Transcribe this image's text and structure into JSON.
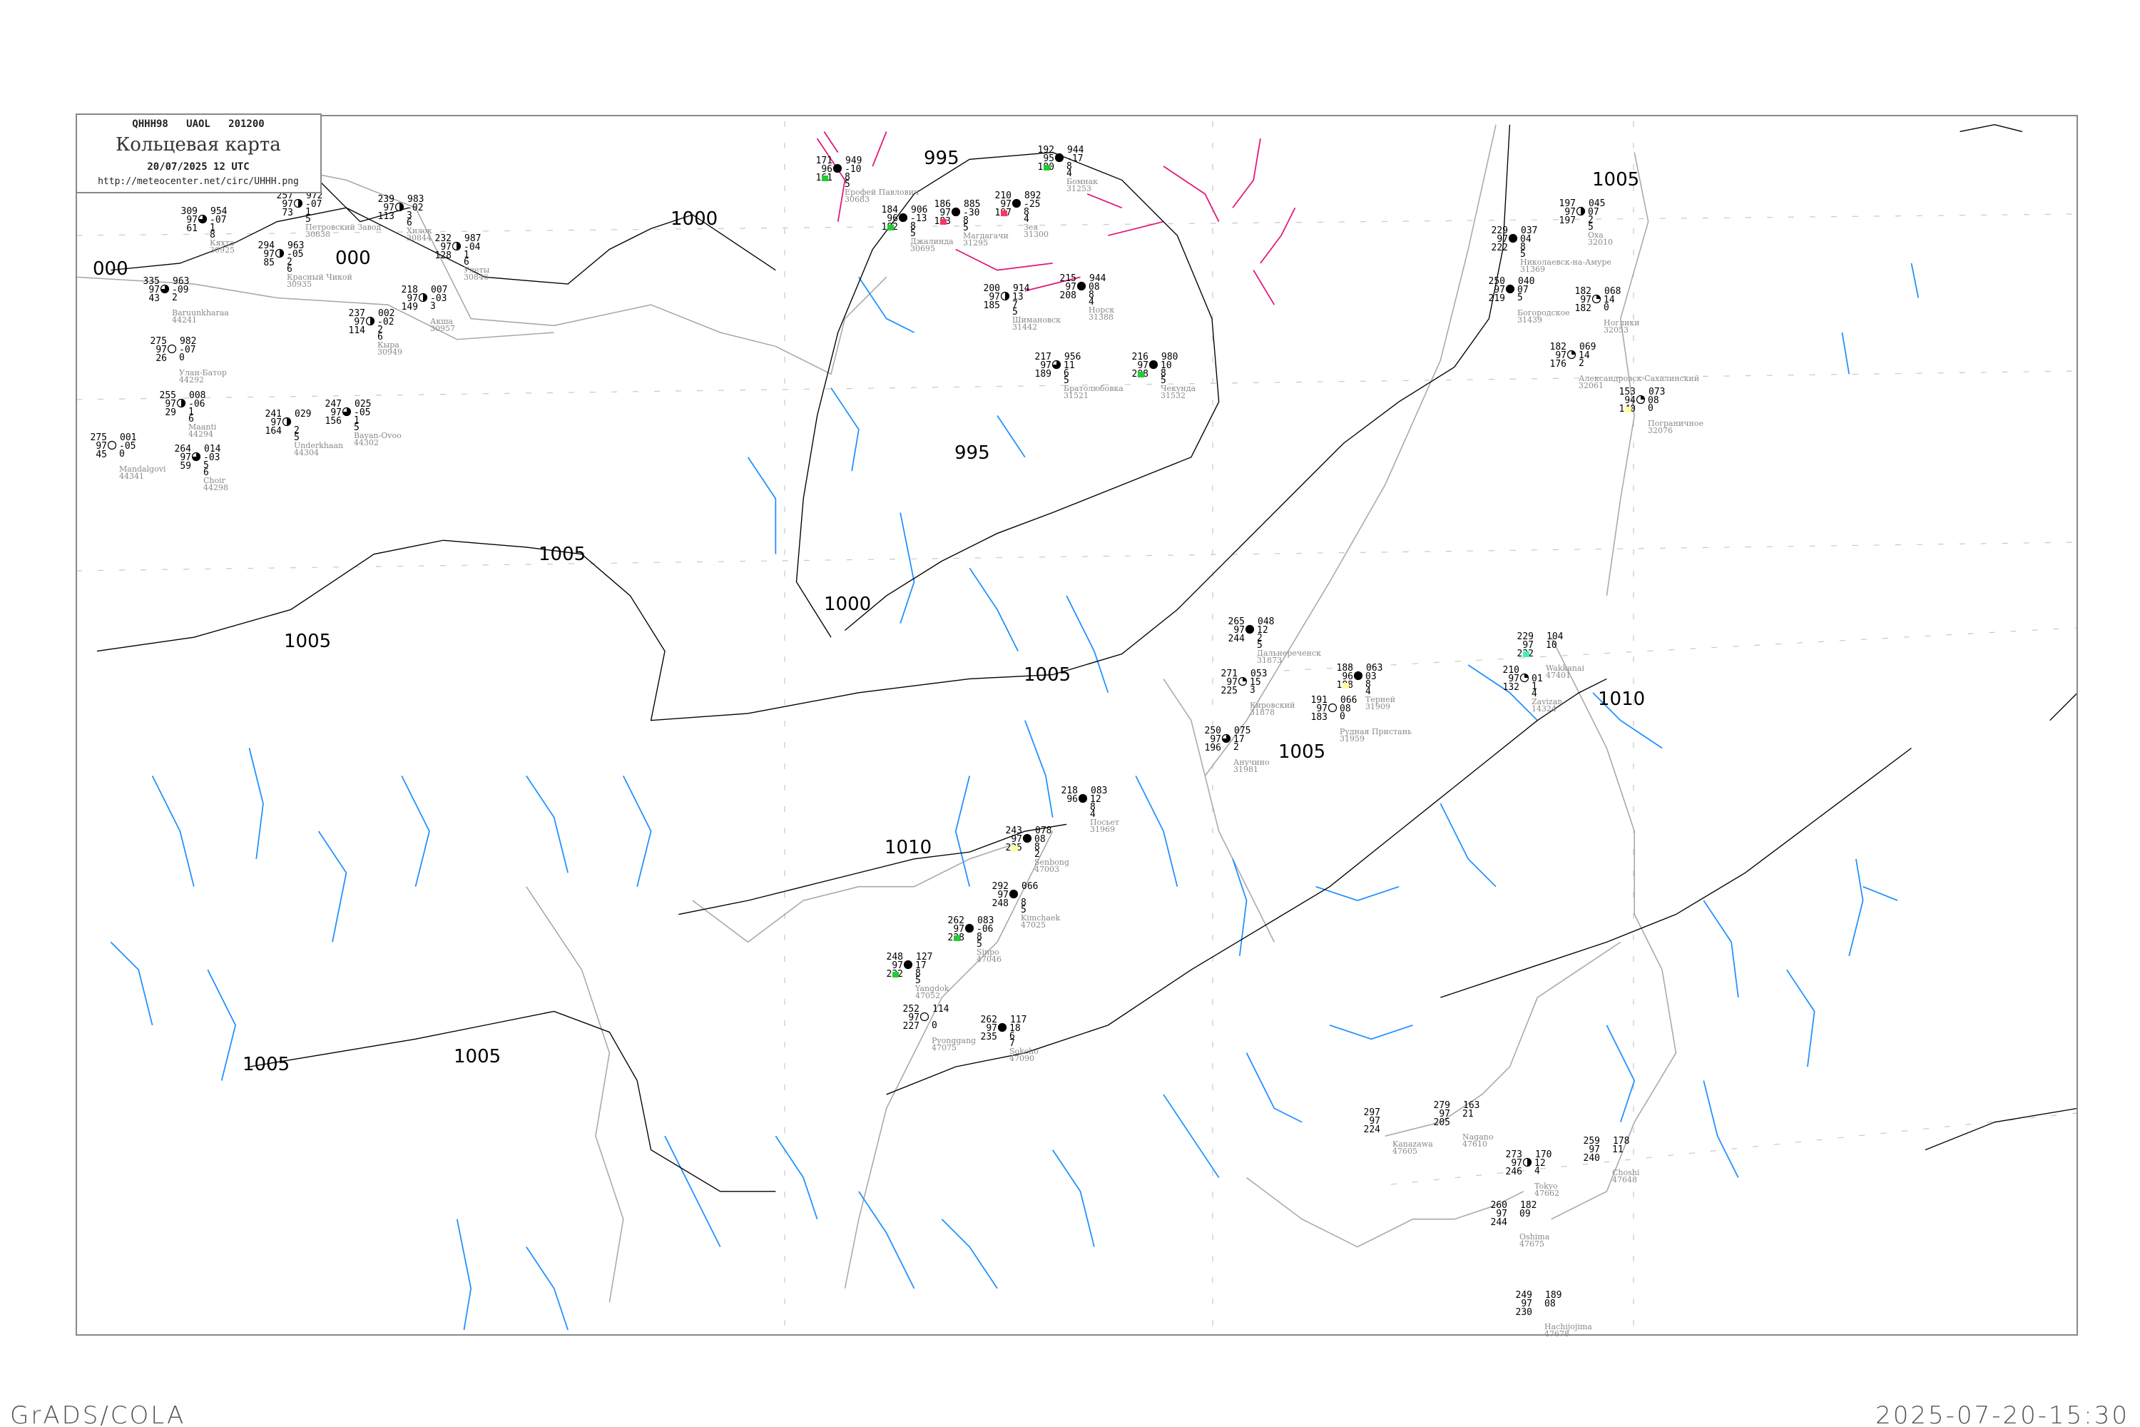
{
  "header": {
    "code": "QHHH98   UAOL   201200",
    "title": "Кольцевая карта",
    "datetime": "20/07/2025 12 UTC",
    "url": "http://meteocenter.net/circ/UHHH.png"
  },
  "footer": {
    "left": "GrADS/COLA",
    "right": "2025-07-20-15:30"
  },
  "colors": {
    "isobar": "#000000",
    "isotherm": "#1e90ff",
    "cold_line": "#e0157a",
    "coastline": "#a0a0a0",
    "precip_marker": "#22cc33",
    "thunder_marker": "#ff3366",
    "fog_marker": "#ffff99",
    "snow_marker": "#44eebb"
  },
  "isobar_labels": [
    "995",
    "1000",
    "000",
    "000",
    "1005",
    "1005",
    "1000",
    "995",
    "1005",
    "1005",
    "1010",
    "1010",
    "1005",
    "1005",
    "1005"
  ],
  "stations": [
    {
      "name": "Петровский Завод",
      "id": "30838",
      "tl": "257",
      "ml": "97",
      "bl": "73",
      "tr": "972",
      "mr": "-07",
      "br": [
        "1",
        "5"
      ],
      "sky": "half",
      "marker": ""
    },
    {
      "name": "Хилок",
      "id": "30844",
      "tl": "239",
      "ml": "97",
      "bl": "113",
      "tr": "983",
      "mr": "-02",
      "br": [
        "3",
        "6"
      ],
      "sky": "half",
      "marker": ""
    },
    {
      "name": "Кяхта",
      "id": "30925",
      "tl": "309",
      "ml": "97",
      "bl": "61",
      "tr": "954",
      "mr": "-07",
      "br": [
        "1",
        "8"
      ],
      "sky": "three",
      "marker": ""
    },
    {
      "name": "Красный Чикой",
      "id": "30935",
      "tl": "294",
      "ml": "97",
      "bl": "85",
      "tr": "963",
      "mr": "-05",
      "br": [
        "2",
        "6"
      ],
      "sky": "half",
      "marker": ""
    },
    {
      "name": "Улеты",
      "id": "30846",
      "tl": "232",
      "ml": "97",
      "bl": "128",
      "tr": "987",
      "mr": "-04",
      "br": [
        "1",
        "6"
      ],
      "sky": "half",
      "marker": ""
    },
    {
      "name": "Baruunkharaa",
      "id": "44241",
      "tl": "335",
      "ml": "97",
      "bl": "43",
      "tr": "963",
      "mr": "-09",
      "br": [
        "2"
      ],
      "sky": "three",
      "marker": ""
    },
    {
      "name": "Улан-Батор",
      "id": "44292",
      "tl": "275",
      "ml": "97",
      "bl": "26",
      "tr": "982",
      "mr": "-07",
      "br": [
        "0"
      ],
      "sky": "clear",
      "marker": ""
    },
    {
      "name": "Maanti",
      "id": "44294",
      "tl": "255",
      "ml": "97",
      "bl": "29",
      "tr": "008",
      "mr": "-06",
      "br": [
        "1",
        "6"
      ],
      "sky": "half",
      "marker": ""
    },
    {
      "name": "Mandalgovi",
      "id": "44341",
      "tl": "275",
      "ml": "97",
      "bl": "45",
      "tr": "001",
      "mr": "-05",
      "br": [
        "0"
      ],
      "sky": "clear",
      "marker": ""
    },
    {
      "name": "Choir",
      "id": "44298",
      "tl": "264",
      "ml": "97",
      "bl": "59",
      "tr": "014",
      "mr": "-03",
      "br": [
        "5",
        "6"
      ],
      "sky": "three",
      "marker": ""
    },
    {
      "name": "Underkhaan",
      "id": "44304",
      "tl": "241",
      "ml": "97",
      "bl": "164",
      "tr": "029",
      "mr": "",
      "br": [
        "2",
        "5"
      ],
      "sky": "half",
      "marker": ""
    },
    {
      "name": "Bayan-Ovoo",
      "id": "44302",
      "tl": "247",
      "ml": "97",
      "bl": "156",
      "tr": "025",
      "mr": "-05",
      "br": [
        "1",
        "5"
      ],
      "sky": "three",
      "marker": ""
    },
    {
      "name": "Кыра",
      "id": "30949",
      "tl": "237",
      "ml": "97",
      "bl": "114",
      "tr": "002",
      "mr": "-02",
      "br": [
        "2",
        "6"
      ],
      "sky": "half",
      "marker": ""
    },
    {
      "name": "Акша",
      "id": "30957",
      "tl": "218",
      "ml": "97",
      "bl": "149",
      "tr": "007",
      "mr": "-03",
      "br": [
        "3"
      ],
      "sky": "half",
      "marker": ""
    },
    {
      "name": "Ерофей Павлович",
      "id": "30683",
      "tl": "171",
      "ml": "96",
      "bl": "161",
      "tr": "949",
      "mr": "-10",
      "br": [
        "8",
        "5"
      ],
      "sky": "full",
      "marker": "precip"
    },
    {
      "name": "Джалинда",
      "id": "30695",
      "tl": "184",
      "ml": "96",
      "bl": "182",
      "tr": "906",
      "mr": "-13",
      "br": [
        "8",
        "5"
      ],
      "sky": "full",
      "marker": "precip"
    },
    {
      "name": "Магдагачи",
      "id": "31295",
      "tl": "186",
      "ml": "97",
      "bl": "183",
      "tr": "885",
      "mr": "-30",
      "br": [
        "8",
        "5"
      ],
      "sky": "full",
      "marker": "thunder"
    },
    {
      "name": "Зея",
      "id": "31300",
      "tl": "210",
      "ml": "97",
      "bl": "197",
      "tr": "892",
      "mr": "-25",
      "br": [
        "8",
        "4"
      ],
      "sky": "full",
      "marker": "thunder"
    },
    {
      "name": "Бомнак",
      "id": "31253",
      "tl": "192",
      "ml": "95",
      "bl": "180",
      "tr": "944",
      "mr": "-17",
      "br": [
        "8",
        "4"
      ],
      "sky": "full",
      "marker": "precip"
    },
    {
      "name": "Норск",
      "id": "31388",
      "tl": "215",
      "ml": "97",
      "bl": "208",
      "tr": "944",
      "mr": "08",
      "br": [
        "8",
        "4"
      ],
      "sky": "full",
      "marker": ""
    },
    {
      "name": "Шимановск",
      "id": "31442",
      "tl": "200",
      "ml": "97",
      "bl": "185",
      "tr": "914",
      "mr": "13",
      "br": [
        "7",
        "5"
      ],
      "sky": "half",
      "marker": ""
    },
    {
      "name": "Братолюбовка",
      "id": "31521",
      "tl": "217",
      "ml": "97",
      "bl": "189",
      "tr": "956",
      "mr": "11",
      "br": [
        "6",
        "5"
      ],
      "sky": "three",
      "marker": ""
    },
    {
      "name": "Чекунда",
      "id": "31532",
      "tl": "216",
      "ml": "97",
      "bl": "208",
      "tr": "980",
      "mr": "10",
      "br": [
        "8",
        "5"
      ],
      "sky": "full",
      "marker": "precip"
    },
    {
      "name": "Оха",
      "id": "32010",
      "tl": "197",
      "ml": "97",
      "bl": "197",
      "tr": "045",
      "mr": "07",
      "br": [
        "2",
        "5"
      ],
      "sky": "half",
      "marker": ""
    },
    {
      "name": "Николаевск-на-Амуре",
      "id": "31369",
      "tl": "229",
      "ml": "97",
      "bl": "222",
      "tr": "037",
      "mr": "04",
      "br": [
        "8",
        "5"
      ],
      "sky": "full",
      "marker": ""
    },
    {
      "name": "Богородское",
      "id": "31439",
      "tl": "250",
      "ml": "97",
      "bl": "219",
      "tr": "040",
      "mr": "07",
      "br": [
        "5"
      ],
      "sky": "full",
      "marker": ""
    },
    {
      "name": "Ноглики",
      "id": "32053",
      "tl": "182",
      "ml": "97",
      "bl": "182",
      "tr": "068",
      "mr": "14",
      "br": [
        "0"
      ],
      "sky": "quarter",
      "marker": ""
    },
    {
      "name": "Александровск-Сахалинский",
      "id": "32061",
      "tl": "182",
      "ml": "97",
      "bl": "176",
      "tr": "069",
      "mr": "14",
      "br": [
        "2"
      ],
      "sky": "quarter",
      "marker": ""
    },
    {
      "name": "Пограничное",
      "id": "32076",
      "tl": "153",
      "ml": "94",
      "bl": "140",
      "tr": "073",
      "mr": "08",
      "br": [
        "0"
      ],
      "sky": "quarter",
      "marker": "fog"
    },
    {
      "name": "Дальнереченск",
      "id": "31873",
      "tl": "265",
      "ml": "97",
      "bl": "244",
      "tr": "048",
      "mr": "12",
      "br": [
        "2",
        "5"
      ],
      "sky": "full",
      "marker": ""
    },
    {
      "name": "Кировский",
      "id": "31878",
      "tl": "271",
      "ml": "97",
      "bl": "225",
      "tr": "053",
      "mr": "15",
      "br": [
        "3"
      ],
      "sky": "quarter",
      "marker": ""
    },
    {
      "name": "Терней",
      "id": "31909",
      "tl": "188",
      "ml": "96",
      "bl": "188",
      "tr": "063",
      "mr": "03",
      "br": [
        "8",
        "4"
      ],
      "sky": "full",
      "marker": "fog"
    },
    {
      "name": "Рудная Пристань",
      "id": "31959",
      "tl": "191",
      "ml": "97",
      "bl": "183",
      "tr": "066",
      "mr": "08",
      "br": [
        "0"
      ],
      "sky": "clear",
      "marker": ""
    },
    {
      "name": "Анучино",
      "id": "31981",
      "tl": "250",
      "ml": "97",
      "bl": "196",
      "tr": "075",
      "mr": "17",
      "br": [
        "2"
      ],
      "sky": "three",
      "marker": ""
    },
    {
      "name": "Zavizan",
      "id": "14324",
      "tl": "210",
      "ml": "97",
      "bl": "132",
      "tr": "",
      "mr": "01",
      "br": [
        "1",
        "4"
      ],
      "sky": "quarter",
      "marker": ""
    },
    {
      "name": "Wakkanai",
      "id": "47401",
      "tl": "229",
      "ml": "97",
      "bl": "222",
      "tr": "104",
      "mr": "10",
      "br": [],
      "sky": "none",
      "marker": "snow"
    },
    {
      "name": "Посьет",
      "id": "31969",
      "tl": "218",
      "ml": "96",
      "bl": "",
      "tr": "083",
      "mr": "12",
      "br": [
        "8",
        "4"
      ],
      "sky": "full",
      "marker": ""
    },
    {
      "name": "Senbong",
      "id": "47003",
      "tl": "243",
      "ml": "97",
      "bl": "235",
      "tr": "078",
      "mr": "08",
      "br": [
        "8",
        "2"
      ],
      "sky": "full",
      "marker": "fog"
    },
    {
      "name": "Kimchaek",
      "id": "47025",
      "tl": "292",
      "ml": "97",
      "bl": "248",
      "tr": "066",
      "mr": "",
      "br": [
        "8",
        "5"
      ],
      "sky": "full",
      "marker": ""
    },
    {
      "name": "Sinpo",
      "id": "47046",
      "tl": "262",
      "ml": "97",
      "bl": "228",
      "tr": "083",
      "mr": "-06",
      "br": [
        "8",
        "5"
      ],
      "sky": "full",
      "marker": "precip"
    },
    {
      "name": "Yangdok",
      "id": "47052",
      "tl": "248",
      "ml": "97",
      "bl": "232",
      "tr": "127",
      "mr": "17",
      "br": [
        "8",
        "5"
      ],
      "sky": "full",
      "marker": "precip"
    },
    {
      "name": "Pyonggang",
      "id": "47075",
      "tl": "252",
      "ml": "97",
      "bl": "227",
      "tr": "114",
      "mr": "",
      "br": [
        "0"
      ],
      "sky": "clear",
      "marker": ""
    },
    {
      "name": "Sokcho",
      "id": "47090",
      "tl": "262",
      "ml": "97",
      "bl": "235",
      "tr": "117",
      "mr": "18",
      "br": [
        "6",
        "7"
      ],
      "sky": "full",
      "marker": ""
    },
    {
      "name": "Tokyo",
      "id": "47662",
      "tl": "273",
      "ml": "97",
      "bl": "246",
      "tr": "170",
      "mr": "12",
      "br": [
        "4"
      ],
      "sky": "half",
      "marker": ""
    },
    {
      "name": "Choshi",
      "id": "47648",
      "tl": "259",
      "ml": "97",
      "bl": "240",
      "tr": "178",
      "mr": "11",
      "br": [],
      "sky": "none",
      "marker": ""
    },
    {
      "name": "Oshima",
      "id": "47675",
      "tl": "260",
      "ml": "97",
      "bl": "244",
      "tr": "182",
      "mr": "09",
      "br": [],
      "sky": "none",
      "marker": ""
    },
    {
      "name": "Hachijojima",
      "id": "47678",
      "tl": "249",
      "ml": "97",
      "bl": "230",
      "tr": "189",
      "mr": "08",
      "br": [],
      "sky": "none",
      "marker": ""
    },
    {
      "name": "Nagano",
      "id": "47610",
      "tl": "279",
      "ml": "97",
      "bl": "205",
      "tr": "163",
      "mr": "21",
      "br": [],
      "sky": "none",
      "marker": ""
    },
    {
      "name": "Kanazawa",
      "id": "47605",
      "tl": "297",
      "ml": "97",
      "bl": "224",
      "tr": "",
      "mr": "",
      "br": [],
      "sky": "none",
      "marker": ""
    }
  ]
}
